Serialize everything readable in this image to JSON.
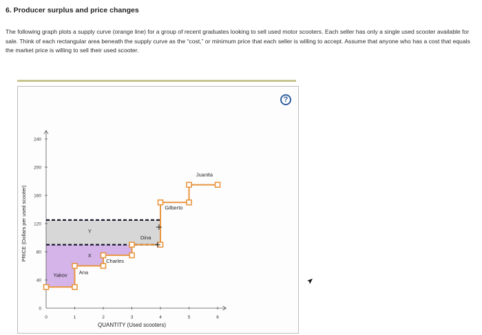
{
  "question": {
    "title": "6. Producer surplus and price changes",
    "body": "The following graph plots a supply curve (orange line) for a group of recent graduates looking to sell used motor scooters. Each seller has only a single used scooter available for sale. Think of each rectangular area beneath the supply curve as the “cost,” or minimum price that each seller is willing to accept. Assume that anyone who has a cost that equals the market price is willing to sell their used scooter."
  },
  "help_label": "?",
  "colors": {
    "supply": "#e8953f",
    "surplus_purple": "#d2b0e8",
    "surplus_grey": "#d7d7d7",
    "dashed": "#1a1a2e",
    "accent": "#2f5d9e"
  },
  "chart_data": {
    "type": "step-supply",
    "xlabel": "QUANTITY (Used scooters)",
    "ylabel": "PRICE (Dollars per used scooter)",
    "xlim": [
      0,
      6
    ],
    "ylim": [
      0,
      240
    ],
    "x_ticks": [
      0,
      1,
      2,
      3,
      4,
      5,
      6
    ],
    "y_ticks": [
      0,
      40,
      80,
      120,
      160,
      200,
      240
    ],
    "sellers": [
      {
        "name": "Yakov",
        "cost": 30
      },
      {
        "name": "Ana",
        "cost": 60
      },
      {
        "name": "Charles",
        "cost": 75
      },
      {
        "name": "Dina",
        "cost": 90
      },
      {
        "name": "Gilberto",
        "cost": 150
      },
      {
        "name": "Juanita",
        "cost": 175
      }
    ],
    "price_lines": [
      {
        "label": "X",
        "price": 90
      },
      {
        "label": "Y",
        "price": 125
      }
    ],
    "markers": [
      {
        "label": "X",
        "x": 1.5,
        "y": 75
      },
      {
        "label": "Y",
        "x": 1.5,
        "y": 110
      }
    ],
    "shaded_areas": [
      {
        "name": "surplus-below-X",
        "color": "purple",
        "price_from": 0,
        "price_to": 90
      },
      {
        "name": "surplus-between-X-Y",
        "color": "grey",
        "price_from": 90,
        "price_to": 125
      }
    ]
  }
}
